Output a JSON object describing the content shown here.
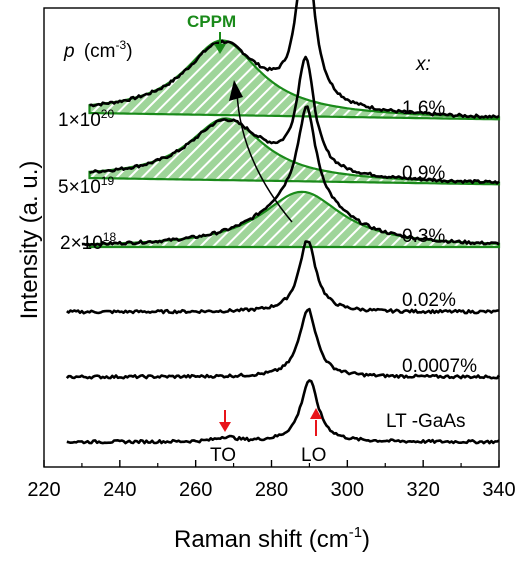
{
  "chart_data": {
    "type": "line",
    "title": "",
    "xlabel": "Raman shift (cm",
    "xlabel_sup": "-1",
    "xlabel_close": ")",
    "ylabel": "Intensity (a. u.)",
    "xlim": [
      220,
      340
    ],
    "x_ticks": [
      220,
      240,
      260,
      280,
      300,
      320,
      340
    ],
    "y_ticks_shown": false,
    "offset_units": "stacked spectra, arbitrary intensity units",
    "spectra": [
      {
        "x_label": "1.6%",
        "p_base": "1×10",
        "p_exp": "20",
        "baseline": 5.0,
        "lo_height": 2.45,
        "lo_pos": 289.0,
        "cppm": {
          "center": 267,
          "height": 1.15,
          "width": 12
        }
      },
      {
        "x_label": "0.9%",
        "p_base": "5×10",
        "p_exp": "19",
        "baseline": 4.0,
        "lo_height": 1.7,
        "lo_pos": 289.0,
        "cppm": {
          "center": 268,
          "height": 0.95,
          "width": 12
        }
      },
      {
        "x_label": "0.3%",
        "p_base": "2×10",
        "p_exp": "18",
        "baseline": 3.0,
        "lo_height": 1.35,
        "lo_pos": 289.3,
        "cppm": {
          "center": 288,
          "height": 0.85,
          "width": 13
        }
      },
      {
        "x_label": "0.02%",
        "p_base": "",
        "p_exp": "",
        "baseline": 2.0,
        "lo_height": 1.1,
        "lo_pos": 289.5,
        "cppm": null
      },
      {
        "x_label": "0.0007%",
        "p_base": "",
        "p_exp": "",
        "baseline": 1.0,
        "lo_height": 1.05,
        "lo_pos": 289.6,
        "cppm": null
      },
      {
        "x_label": "LT -GaAs",
        "p_base": "",
        "p_exp": "",
        "baseline": 0.0,
        "lo_height": 0.95,
        "lo_pos": 290.0,
        "to_height": 0.07,
        "cppm": null
      }
    ],
    "annotations": {
      "cppm_label": "CPPM",
      "p_header": "p",
      "p_unit": "(cm",
      "p_unit_sup": "-3",
      "p_unit_close": ")",
      "x_header": "x:",
      "to_label": "TO",
      "lo_label": "LO",
      "cppm_color": "#1a8a1a",
      "marker_color": "#e8141a"
    }
  }
}
